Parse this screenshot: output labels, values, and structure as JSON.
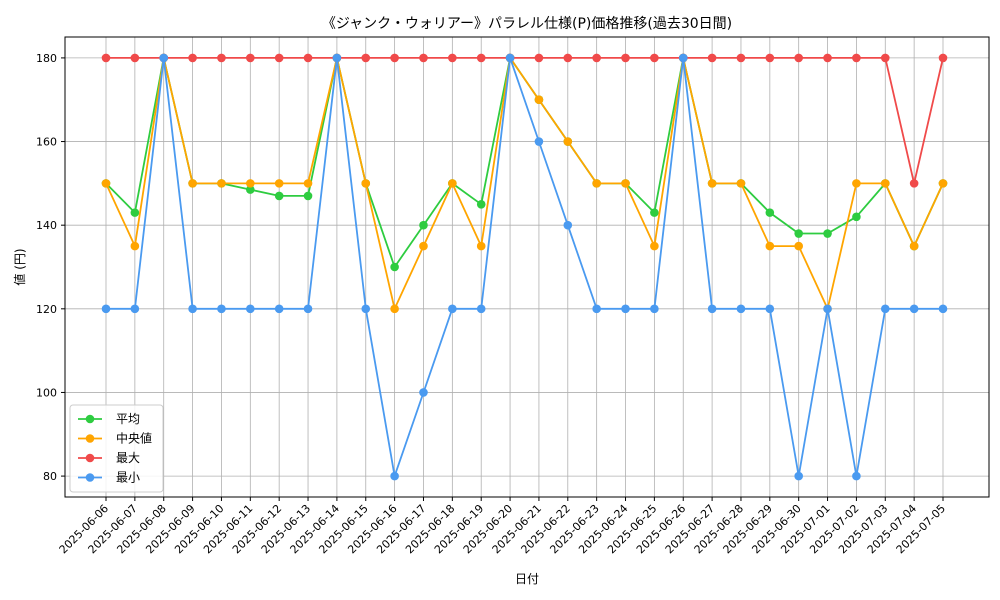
{
  "chart_data": {
    "type": "line",
    "title": "《ジャンク・ウォリアー》パラレル仕様(P)価格推移(過去30日間)",
    "xlabel": "日付",
    "ylabel": "値 (円)",
    "ylim": [
      75,
      185
    ],
    "yticks": [
      80,
      100,
      120,
      140,
      160,
      180
    ],
    "grid": true,
    "legend_position": "lower-left",
    "categories": [
      "2025-06-06",
      "2025-06-07",
      "2025-06-08",
      "2025-06-09",
      "2025-06-10",
      "2025-06-11",
      "2025-06-12",
      "2025-06-13",
      "2025-06-14",
      "2025-06-15",
      "2025-06-16",
      "2025-06-17",
      "2025-06-18",
      "2025-06-19",
      "2025-06-20",
      "2025-06-21",
      "2025-06-22",
      "2025-06-23",
      "2025-06-24",
      "2025-06-25",
      "2025-06-26",
      "2025-06-27",
      "2025-06-28",
      "2025-06-29",
      "2025-06-30",
      "2025-07-01",
      "2025-07-02",
      "2025-07-03",
      "2025-07-04",
      "2025-07-05"
    ],
    "series": [
      {
        "name": "平均",
        "color": "#2ecc40",
        "values": [
          150,
          143,
          180,
          150,
          150,
          148.5,
          147,
          147,
          180,
          150,
          130,
          140,
          150,
          145,
          180,
          170,
          160,
          150,
          150,
          143,
          180,
          150,
          150,
          143,
          138,
          138,
          142,
          150,
          135,
          150
        ]
      },
      {
        "name": "中央値",
        "color": "#ffa500",
        "values": [
          150,
          135,
          180,
          150,
          150,
          150,
          150,
          150,
          180,
          150,
          120,
          135,
          150,
          135,
          180,
          170,
          160,
          150,
          150,
          135,
          180,
          150,
          150,
          135,
          135,
          120,
          150,
          150,
          135,
          150
        ]
      },
      {
        "name": "最大",
        "color": "#f04a4a",
        "values": [
          180,
          180,
          180,
          180,
          180,
          180,
          180,
          180,
          180,
          180,
          180,
          180,
          180,
          180,
          180,
          180,
          180,
          180,
          180,
          180,
          180,
          180,
          180,
          180,
          180,
          180,
          180,
          180,
          150,
          180
        ]
      },
      {
        "name": "最小",
        "color": "#4a9af0",
        "values": [
          120,
          120,
          180,
          120,
          120,
          120,
          120,
          120,
          180,
          120,
          80,
          100,
          120,
          120,
          180,
          160,
          140,
          120,
          120,
          120,
          180,
          120,
          120,
          120,
          80,
          120,
          80,
          120,
          120,
          120
        ]
      }
    ]
  }
}
